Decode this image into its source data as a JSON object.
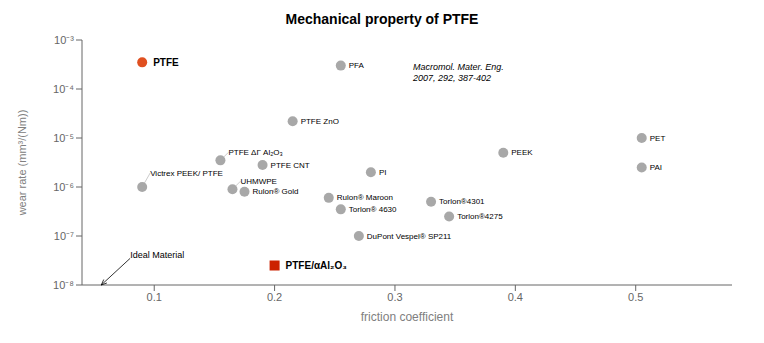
{
  "chart_data": {
    "type": "scatter",
    "title": "Mechanical property of PTFE",
    "xlabel": "friction coefficient",
    "ylabel": "wear rate (mm³/(Nm))",
    "log": "y",
    "grid": false,
    "xlim": [
      0.04,
      0.58
    ],
    "xticks": [
      0.1,
      0.2,
      0.3,
      0.4,
      0.5
    ],
    "ylim": [
      1e-08,
      0.001
    ],
    "yticks": [
      {
        "value": 1e-08,
        "label": "10⁻⁸"
      },
      {
        "value": 1e-07,
        "label": "10⁻⁷"
      },
      {
        "value": 1e-06,
        "label": "10⁻⁶"
      },
      {
        "value": 1e-05,
        "label": "10⁻⁵"
      },
      {
        "value": 0.0001,
        "label": "10⁻⁴"
      },
      {
        "value": 0.001,
        "label": "10⁻³"
      }
    ],
    "series": [
      {
        "color": "#a8a8a8",
        "marker": "circle",
        "x": [
          0.255,
          0.215,
          0.155,
          0.19,
          0.09,
          0.165,
          0.175,
          0.245,
          0.33,
          0.255,
          0.345,
          0.27,
          0.39,
          0.505,
          0.505,
          0.28
        ],
        "y": [
          0.0003,
          2.2e-05,
          3.5e-06,
          2.8e-06,
          1e-06,
          9e-07,
          8e-07,
          6e-07,
          5e-07,
          3.5e-07,
          2.5e-07,
          1e-07,
          5e-06,
          1e-05,
          2.5e-06,
          2e-06
        ],
        "labels": [
          "PFA",
          "PTFE ZnO",
          "PTFE ΔΓ Al₂O₃",
          "PTFE CNT",
          "Victrex PEEK/ PTFE",
          "UHMWPE",
          "Rulon® Gold",
          "Rulon® Maroon",
          "Torlon®4301",
          "Torlon® 4630",
          "Torlon®4275",
          "DuPont Vespel® SP211",
          "PEEK",
          "PET",
          "PAI",
          "PI"
        ]
      },
      {
        "color": "#e05020",
        "marker": "circle",
        "x": [
          0.09
        ],
        "y": [
          0.00035
        ],
        "labels": [
          "PTFE"
        ]
      },
      {
        "color": "#cc2200",
        "marker": "square",
        "x": [
          0.2
        ],
        "y": [
          2.5e-08
        ],
        "labels": [
          "PTFE/αAl₂O₃"
        ]
      }
    ],
    "annotations": [
      {
        "text": "Macromol. Mater. Eng.\n2007, 292, 387-402",
        "x": 0.315,
        "y": 0.00035
      },
      {
        "text": "Ideal Material",
        "x": 0.08,
        "y": 3.5e-08,
        "arrow_to": [
          0.056,
          1e-08
        ]
      }
    ]
  }
}
